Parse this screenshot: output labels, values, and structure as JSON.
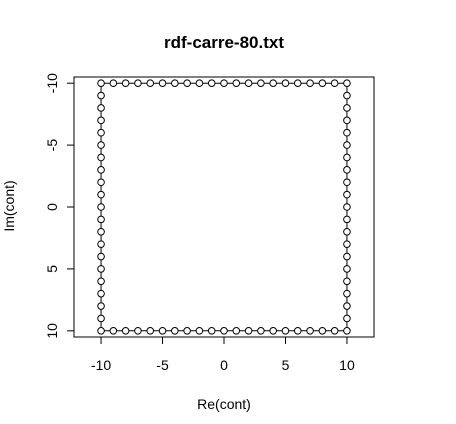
{
  "chart_data": {
    "type": "scatter",
    "title": "rdf-carre-80.txt",
    "xlabel": "Re(cont)",
    "ylabel": "Im(cont)",
    "xlim": [
      -12.2,
      12.2
    ],
    "ylim": [
      -10.5,
      10.5
    ],
    "y_axis_inverted": true,
    "x_ticks": [
      -10,
      -5,
      0,
      5,
      10
    ],
    "y_ticks": [
      -10,
      -5,
      0,
      5,
      10
    ],
    "x_tick_labels": [
      "-10",
      "-5",
      "0",
      "5",
      "10"
    ],
    "y_tick_labels": [
      "-10",
      "-5",
      "0",
      "5",
      "10"
    ],
    "marker": "open-circle",
    "connected": true,
    "grid": false,
    "series": [
      {
        "x": [
          -10,
          -9,
          -8,
          -7,
          -6,
          -5,
          -4,
          -3,
          -2,
          -1,
          0,
          1,
          2,
          3,
          4,
          5,
          6,
          7,
          8,
          9,
          10,
          10,
          10,
          10,
          10,
          10,
          10,
          10,
          10,
          10,
          10,
          10,
          10,
          10,
          10,
          10,
          10,
          10,
          10,
          10,
          10,
          9,
          8,
          7,
          6,
          5,
          4,
          3,
          2,
          1,
          0,
          -1,
          -2,
          -3,
          -4,
          -5,
          -6,
          -7,
          -8,
          -9,
          -10,
          -10,
          -10,
          -10,
          -10,
          -10,
          -10,
          -10,
          -10,
          -10,
          -10,
          -10,
          -10,
          -10,
          -10,
          -10,
          -10,
          -10,
          -10,
          -10
        ],
        "y": [
          -10,
          -10,
          -10,
          -10,
          -10,
          -10,
          -10,
          -10,
          -10,
          -10,
          -10,
          -10,
          -10,
          -10,
          -10,
          -10,
          -10,
          -10,
          -10,
          -10,
          -10,
          -9,
          -8,
          -7,
          -6,
          -5,
          -4,
          -3,
          -2,
          -1,
          0,
          1,
          2,
          3,
          4,
          5,
          6,
          7,
          8,
          9,
          10,
          10,
          10,
          10,
          10,
          10,
          10,
          10,
          10,
          10,
          10,
          10,
          10,
          10,
          10,
          10,
          10,
          10,
          10,
          10,
          10,
          9,
          8,
          7,
          6,
          5,
          4,
          3,
          2,
          1,
          0,
          -1,
          -2,
          -3,
          -4,
          -5,
          -6,
          -7,
          -8,
          -9
        ]
      }
    ]
  }
}
